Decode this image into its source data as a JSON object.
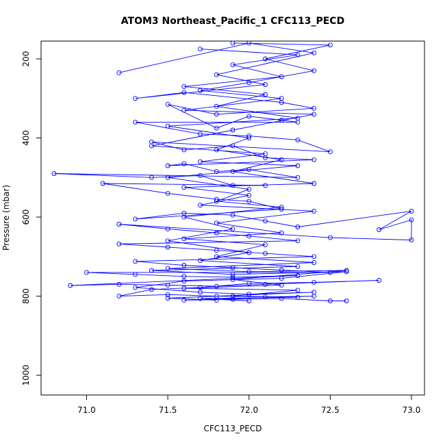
{
  "chart_data": {
    "type": "line",
    "title": "ATOM3 Northeast_Pacific_1 CFC113_PECD",
    "xlabel": "CFC113_PECD",
    "ylabel": "Pressure (mbar)",
    "xlim": [
      70.72,
      73.08
    ],
    "ylim": [
      1050,
      155
    ],
    "y_axis_inverted": true,
    "x_ticks": [
      71.0,
      71.5,
      72.0,
      72.5,
      73.0
    ],
    "x_tick_labels": [
      "71.0",
      "71.5",
      "72.0",
      "72.5",
      "73.0"
    ],
    "y_ticks": [
      200,
      400,
      600,
      800,
      1000
    ],
    "y_tick_labels": [
      "200",
      "400",
      "600",
      "800",
      "1000"
    ],
    "marker": "open-circle",
    "grid": false,
    "colors": {
      "series": "#0000ff",
      "axis": "#000000",
      "background": "#ffffff"
    },
    "series": [
      {
        "points": [
          [
            71.2,
            235
          ],
          [
            72.0,
            160
          ],
          [
            72.4,
            185
          ],
          [
            71.8,
            240
          ],
          [
            72.1,
            265
          ],
          [
            71.3,
            300
          ],
          [
            71.6,
            285
          ],
          [
            72.2,
            310
          ],
          [
            72.4,
            325
          ],
          [
            71.8,
            340
          ],
          [
            71.5,
            315
          ],
          [
            71.8,
            375
          ],
          [
            72.0,
            345
          ],
          [
            72.2,
            355
          ],
          [
            72.3,
            360
          ],
          [
            71.3,
            360
          ],
          [
            71.7,
            390
          ],
          [
            72.0,
            395
          ],
          [
            72.3,
            405
          ],
          [
            72.5,
            435
          ],
          [
            71.4,
            410
          ],
          [
            71.6,
            430
          ],
          [
            71.9,
            420
          ],
          [
            72.1,
            450
          ],
          [
            72.4,
            455
          ],
          [
            71.5,
            470
          ],
          [
            71.6,
            465
          ],
          [
            71.8,
            485
          ],
          [
            72.0,
            480
          ],
          [
            72.3,
            500
          ],
          [
            70.8,
            490
          ],
          [
            71.4,
            500
          ],
          [
            71.7,
            495
          ],
          [
            71.9,
            520
          ],
          [
            72.1,
            520
          ],
          [
            71.1,
            515
          ],
          [
            71.5,
            540
          ],
          [
            71.8,
            555
          ],
          [
            72.0,
            560
          ],
          [
            72.2,
            580
          ],
          [
            71.3,
            605
          ],
          [
            71.6,
            590
          ],
          [
            71.9,
            595
          ],
          [
            72.1,
            610
          ],
          [
            72.3,
            625
          ],
          [
            73.0,
            585
          ],
          [
            72.8,
            632
          ],
          [
            73.0,
            607
          ],
          [
            73.0,
            658
          ],
          [
            72.5,
            652
          ],
          [
            71.2,
            618
          ],
          [
            71.5,
            630
          ],
          [
            71.8,
            640
          ],
          [
            72.0,
            648
          ],
          [
            72.3,
            660
          ],
          [
            71.2,
            668
          ],
          [
            71.5,
            676
          ],
          [
            71.8,
            684
          ],
          [
            72.1,
            692
          ],
          [
            72.4,
            700
          ],
          [
            71.3,
            712
          ],
          [
            71.6,
            722
          ],
          [
            71.9,
            728
          ],
          [
            72.2,
            734
          ],
          [
            72.5,
            740
          ],
          [
            71.0,
            740
          ],
          [
            71.3,
            745
          ],
          [
            71.6,
            750
          ],
          [
            71.9,
            752
          ],
          [
            72.3,
            748
          ],
          [
            70.9,
            773
          ],
          [
            71.2,
            770
          ],
          [
            71.5,
            772
          ],
          [
            71.8,
            775
          ],
          [
            72.1,
            770
          ],
          [
            72.8,
            760
          ],
          [
            72.4,
            765
          ],
          [
            72.0,
            768
          ],
          [
            71.7,
            778
          ],
          [
            71.4,
            783
          ],
          [
            71.2,
            800
          ],
          [
            71.5,
            796
          ],
          [
            71.8,
            800
          ],
          [
            72.1,
            802
          ],
          [
            72.4,
            800
          ],
          [
            71.6,
            810
          ],
          [
            71.9,
            808
          ],
          [
            72.2,
            806
          ],
          [
            72.5,
            812
          ],
          [
            72.6,
            812
          ]
        ]
      },
      {
        "points": [
          [
            71.9,
            160
          ],
          [
            72.5,
            165
          ],
          [
            72.1,
            200
          ],
          [
            72.4,
            230
          ],
          [
            72.0,
            260
          ],
          [
            71.7,
            280
          ],
          [
            72.2,
            300
          ],
          [
            71.6,
            330
          ],
          [
            72.4,
            340
          ],
          [
            71.9,
            380
          ],
          [
            71.4,
            420
          ],
          [
            72.1,
            440
          ],
          [
            71.7,
            460
          ],
          [
            72.3,
            470
          ],
          [
            71.5,
            500
          ],
          [
            72.0,
            530
          ],
          [
            71.8,
            560
          ],
          [
            72.2,
            575
          ],
          [
            71.6,
            600
          ],
          [
            71.9,
            630
          ],
          [
            71.5,
            660
          ],
          [
            72.0,
            690
          ],
          [
            71.7,
            710
          ],
          [
            72.3,
            725
          ],
          [
            71.4,
            735
          ],
          [
            71.9,
            745
          ],
          [
            72.6,
            738
          ],
          [
            72.2,
            755
          ],
          [
            71.6,
            762
          ],
          [
            71.3,
            778
          ],
          [
            71.7,
            790
          ],
          [
            72.0,
            795
          ],
          [
            72.4,
            790
          ],
          [
            71.5,
            805
          ],
          [
            71.8,
            810
          ]
        ]
      },
      {
        "points": [
          [
            71.7,
            175
          ],
          [
            72.3,
            190
          ],
          [
            71.9,
            215
          ],
          [
            72.2,
            245
          ],
          [
            71.6,
            270
          ],
          [
            72.1,
            290
          ],
          [
            71.8,
            320
          ],
          [
            72.3,
            350
          ],
          [
            71.5,
            370
          ],
          [
            72.0,
            400
          ],
          [
            71.8,
            430
          ],
          [
            72.2,
            455
          ],
          [
            71.9,
            485
          ],
          [
            72.4,
            515
          ],
          [
            71.6,
            525
          ],
          [
            72.0,
            545
          ],
          [
            71.7,
            570
          ],
          [
            72.4,
            585
          ],
          [
            71.8,
            615
          ],
          [
            72.2,
            640
          ],
          [
            71.6,
            655
          ],
          [
            72.1,
            670
          ],
          [
            71.8,
            700
          ],
          [
            72.4,
            715
          ],
          [
            71.5,
            730
          ],
          [
            72.0,
            738
          ],
          [
            72.6,
            735
          ],
          [
            71.9,
            758
          ],
          [
            72.2,
            772
          ],
          [
            71.6,
            780
          ],
          [
            72.3,
            785
          ],
          [
            71.9,
            800
          ],
          [
            72.3,
            803
          ],
          [
            71.7,
            806
          ],
          [
            72.0,
            812
          ]
        ]
      }
    ]
  }
}
